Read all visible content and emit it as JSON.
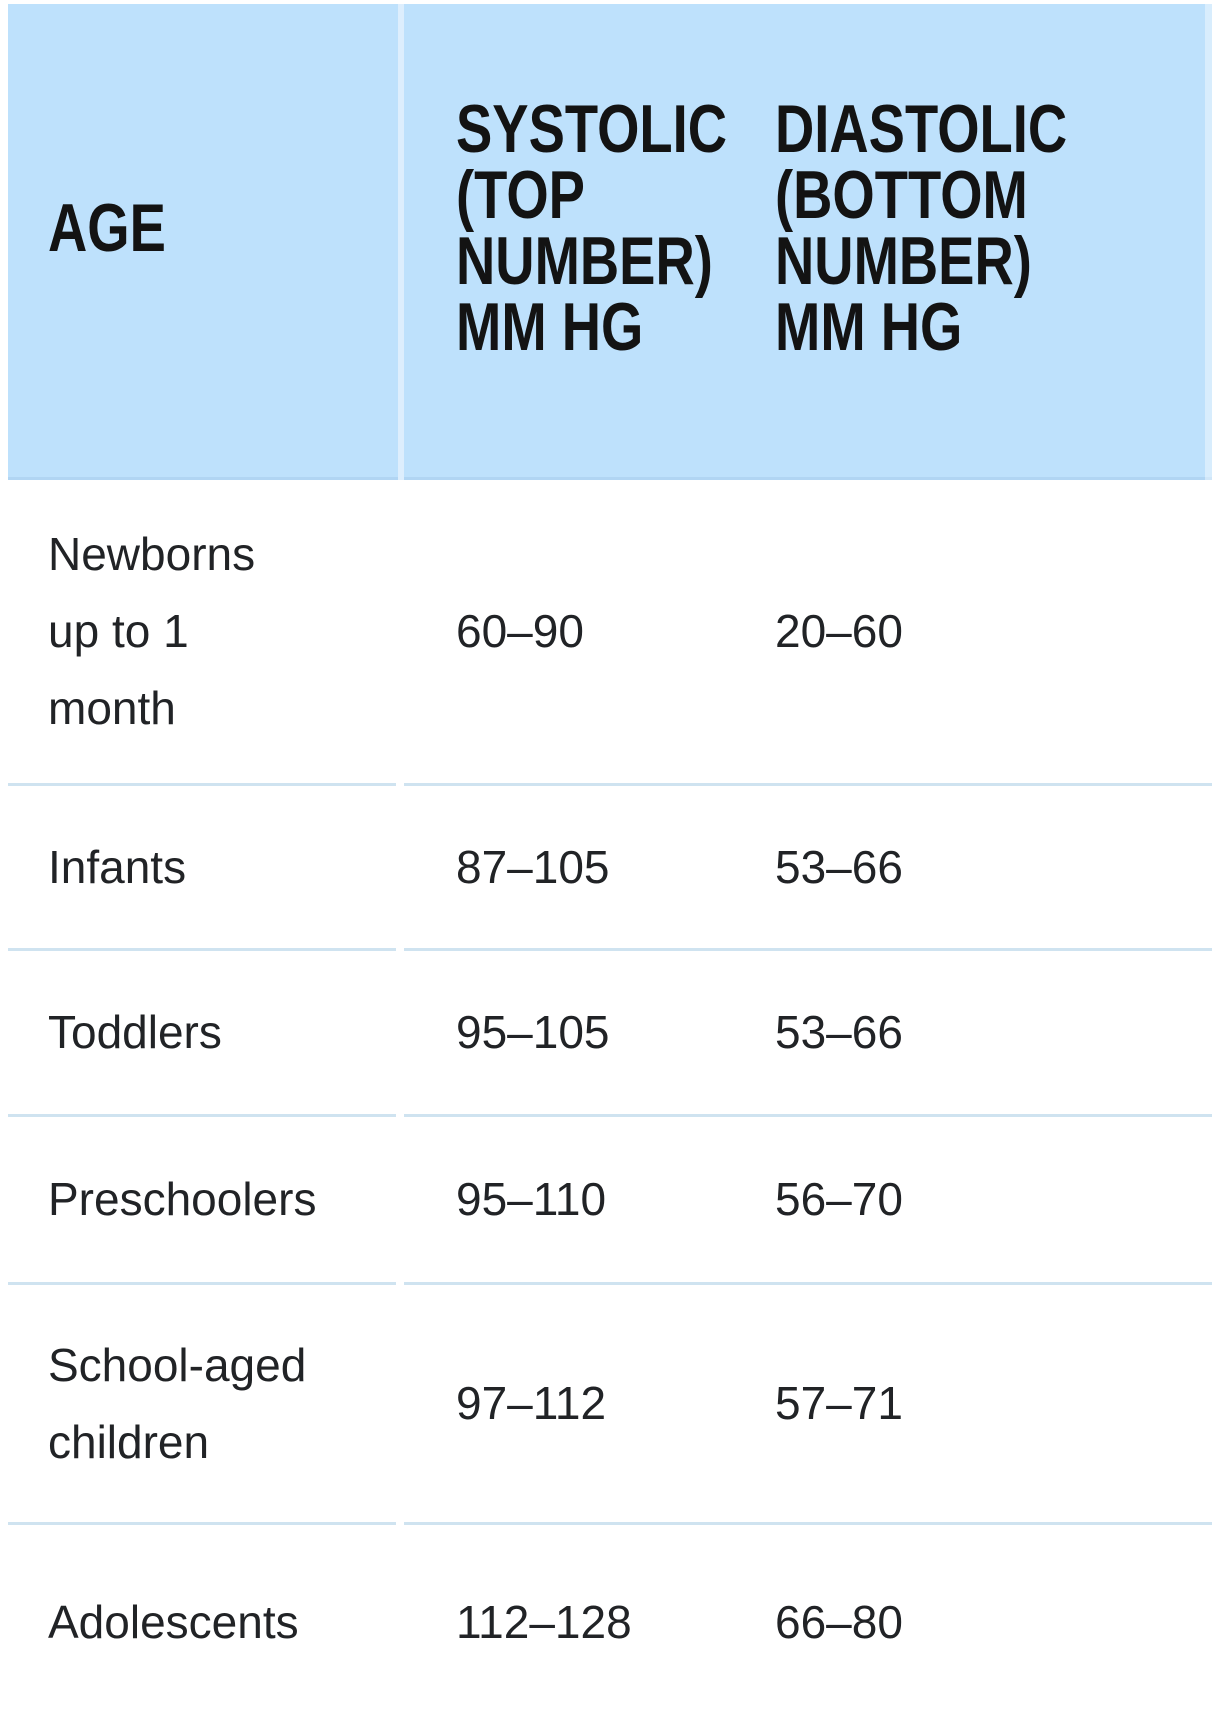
{
  "colors": {
    "header_background": "#bee1fc",
    "header_divider": "#ddeefd",
    "row_separator": "#cfe3f0",
    "header_text": "#131313",
    "body_text": "#212326",
    "page_background": "#ffffff"
  },
  "table": {
    "header": {
      "age": "AGE",
      "systolic": "SYSTOLIC\n(TOP\nNUMBER)\nMM HG",
      "diastolic": "DIASTOLIC\n(BOTTOM\nNUMBER)\nMM HG"
    },
    "rows": [
      {
        "age": "Newborns\nup to 1\nmonth",
        "systolic": "60–90",
        "diastolic": "20–60"
      },
      {
        "age": "Infants",
        "systolic": "87–105",
        "diastolic": "53–66"
      },
      {
        "age": "Toddlers",
        "systolic": "95–105",
        "diastolic": "53–66"
      },
      {
        "age": "Preschoolers",
        "systolic": "95–110",
        "diastolic": "56–70"
      },
      {
        "age": "School-aged\nchildren",
        "systolic": "97–112",
        "diastolic": "57–71"
      },
      {
        "age": "Adolescents",
        "systolic": "112–128",
        "diastolic": "66–80"
      }
    ]
  },
  "chart_data": {
    "type": "table",
    "title": "",
    "columns": [
      "AGE",
      "SYSTOLIC (TOP NUMBER) MM HG",
      "DIASTOLIC (BOTTOM NUMBER) MM HG"
    ],
    "rows": [
      [
        "Newborns up to 1 month",
        "60–90",
        "20–60"
      ],
      [
        "Infants",
        "87–105",
        "53–66"
      ],
      [
        "Toddlers",
        "95–105",
        "53–66"
      ],
      [
        "Preschoolers",
        "95–110",
        "56–70"
      ],
      [
        "School-aged children",
        "97–112",
        "57–71"
      ],
      [
        "Adolescents",
        "112–128",
        "66–80"
      ]
    ],
    "systolic_ranges_mm_hg": [
      [
        60,
        90
      ],
      [
        87,
        105
      ],
      [
        95,
        105
      ],
      [
        95,
        110
      ],
      [
        97,
        112
      ],
      [
        112,
        128
      ]
    ],
    "diastolic_ranges_mm_hg": [
      [
        20,
        60
      ],
      [
        53,
        66
      ],
      [
        53,
        66
      ],
      [
        56,
        70
      ],
      [
        57,
        71
      ],
      [
        66,
        80
      ]
    ]
  }
}
